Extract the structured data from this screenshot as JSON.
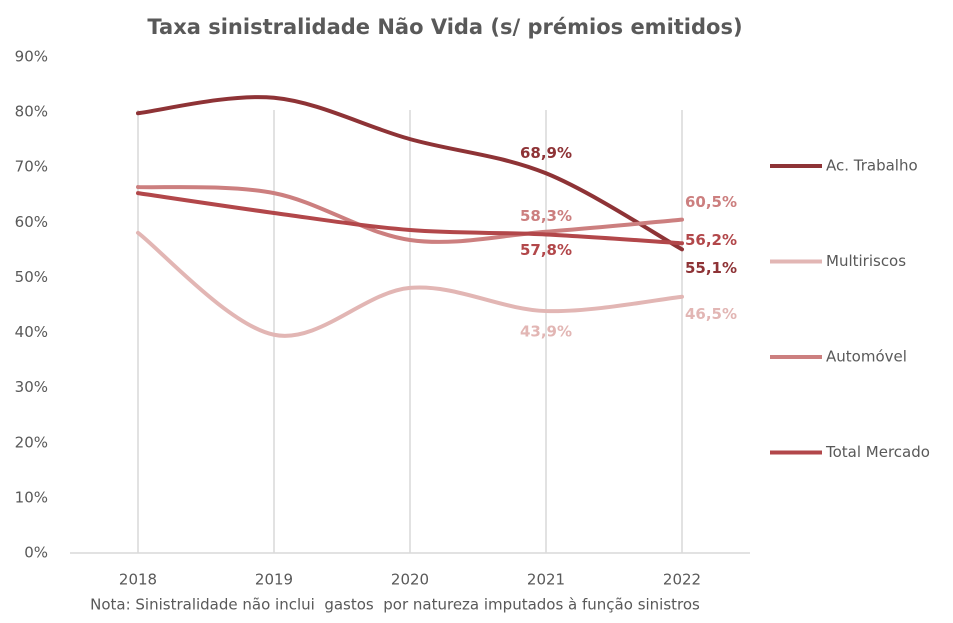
{
  "chart_data": {
    "type": "line",
    "title": "Taxa sinistralidade Não Vida (s/ prémios emitidos)",
    "note": "Nota: Sinistralidade não inclui  gastos  por natureza imputados à função sinistros",
    "categories": [
      "2018",
      "2019",
      "2020",
      "2021",
      "2022"
    ],
    "series": [
      {
        "name": "Ac. Trabalho",
        "color": "#8e3336",
        "values": [
          79.8,
          82.6,
          75.1,
          68.9,
          55.1
        ],
        "value_labels": [
          null,
          null,
          null,
          "68,9%",
          "55,1%"
        ]
      },
      {
        "name": "Multiriscos",
        "color": "#e2b6b4",
        "values": [
          58.1,
          39.6,
          48.1,
          43.9,
          46.5
        ],
        "value_labels": [
          null,
          null,
          null,
          "43,9%",
          "46,5%"
        ]
      },
      {
        "name": "Automóvel",
        "color": "#cc7f7f",
        "values": [
          66.4,
          65.3,
          56.8,
          58.3,
          60.5
        ],
        "value_labels": [
          null,
          null,
          null,
          "58,3%",
          "60,5%"
        ]
      },
      {
        "name": "Total Mercado",
        "color": "#b2474a",
        "values": [
          65.3,
          61.7,
          58.6,
          57.8,
          56.2
        ],
        "value_labels": [
          null,
          null,
          null,
          "57,8%",
          "56,2%"
        ]
      }
    ],
    "ylim": [
      0,
      90
    ],
    "yticks": [
      {
        "value": 0,
        "label": "0%"
      },
      {
        "value": 10,
        "label": "10%"
      },
      {
        "value": 20,
        "label": "20%"
      },
      {
        "value": 30,
        "label": "30%"
      },
      {
        "value": 40,
        "label": "40%"
      },
      {
        "value": 50,
        "label": "50%"
      },
      {
        "value": 60,
        "label": "60%"
      },
      {
        "value": 70,
        "label": "70%"
      },
      {
        "value": 80,
        "label": "80%"
      },
      {
        "value": 90,
        "label": "90%"
      }
    ],
    "grid": true,
    "legend": "right"
  }
}
